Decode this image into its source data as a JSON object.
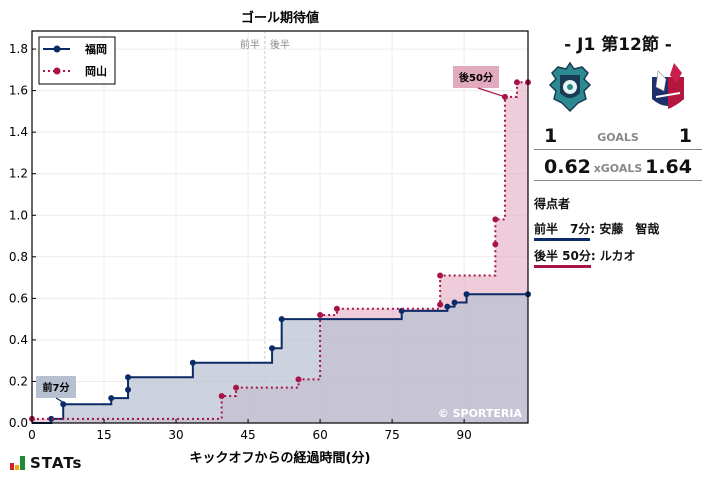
{
  "chart_data": {
    "type": "line",
    "subtype": "step",
    "title": "ゴール期待値",
    "xlabel": "キックオフからの経過時間(分)",
    "ylabel": "",
    "xlim": [
      0,
      103.3
    ],
    "ylim": [
      0,
      1.887
    ],
    "xticks": [
      0,
      15,
      30,
      45,
      60,
      75,
      90
    ],
    "yticks": [
      0.0,
      0.2,
      0.4,
      0.6,
      0.8,
      1.0,
      1.2,
      1.4,
      1.6,
      1.8
    ],
    "ytick_labels": [
      "0.0",
      "0.2",
      "0.4",
      "0.6",
      "0.8",
      "1.0",
      "1.2",
      "1.4",
      "1.6",
      "1.8"
    ],
    "grid": true,
    "legend_position": "upper left",
    "halftime_line": {
      "x": 48.5,
      "labels": [
        "前半",
        "後半"
      ]
    },
    "series": [
      {
        "name": "福岡",
        "color": "#0b2b66",
        "fill": "#b7c0d1",
        "style": "solid",
        "points": [
          [
            0,
            0.0
          ],
          [
            4,
            0.02
          ],
          [
            6.5,
            0.09
          ],
          [
            16.5,
            0.12
          ],
          [
            20,
            0.16
          ],
          [
            20,
            0.22
          ],
          [
            33.5,
            0.29
          ],
          [
            50,
            0.36
          ],
          [
            52,
            0.5
          ],
          [
            77,
            0.54
          ],
          [
            86.5,
            0.56
          ],
          [
            88,
            0.58
          ],
          [
            90.5,
            0.62
          ],
          [
            103.3,
            0.62
          ]
        ]
      },
      {
        "name": "岡山",
        "color": "#a8144a",
        "fill": "#e2aabf",
        "style": "dotted",
        "points": [
          [
            0,
            0.02
          ],
          [
            39.5,
            0.13
          ],
          [
            42.5,
            0.17
          ],
          [
            55.5,
            0.21
          ],
          [
            60,
            0.52
          ],
          [
            63.5,
            0.55
          ],
          [
            85,
            0.57
          ],
          [
            85,
            0.71
          ],
          [
            96.5,
            0.86
          ],
          [
            96.5,
            0.98
          ],
          [
            98.5,
            1.57
          ],
          [
            101,
            1.64
          ],
          [
            103.3,
            1.64
          ]
        ]
      }
    ],
    "annotations": [
      {
        "text": "前7分",
        "x": 6.5,
        "y": 0.09,
        "team": "福岡",
        "bg": "#b7c0d1"
      },
      {
        "text": "後50分",
        "x": 98.5,
        "y": 1.57,
        "team": "岡山",
        "bg": "#e2aabf"
      }
    ],
    "watermark": "© SPORTERIA"
  },
  "panel": {
    "round_title": "- J1 第12節 -",
    "home_team": "福岡",
    "away_team": "岡山",
    "home_logo": "avispa-fukuoka-crest-icon",
    "away_logo": "fagiano-okayama-crest-icon",
    "goals": {
      "home": "1",
      "label": "GOALS",
      "away": "1"
    },
    "xgoals": {
      "home": "0.62",
      "label": "xGOALS",
      "away": "1.64"
    },
    "scorers_header": "得点者",
    "scorers": [
      {
        "time": "前半　7分",
        "name": ": 安藤　智哉",
        "team": "home"
      },
      {
        "time": "後半 50分",
        "name": ": ルカオ",
        "team": "away"
      }
    ]
  },
  "footer": {
    "brand": "STATs"
  }
}
